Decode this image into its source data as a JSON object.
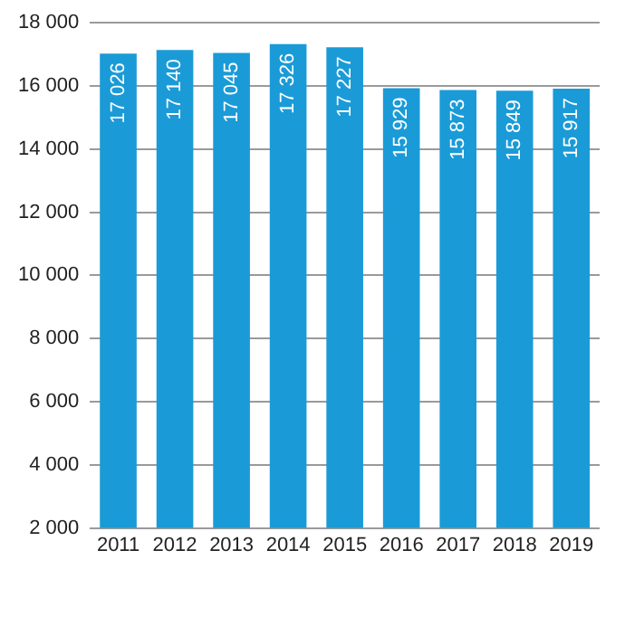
{
  "chart_data": {
    "type": "bar",
    "categories": [
      "2011",
      "2012",
      "2013",
      "2014",
      "2015",
      "2016",
      "2017",
      "2018",
      "2019"
    ],
    "values": [
      17026,
      17140,
      17045,
      17326,
      17227,
      15929,
      15873,
      15849,
      15917
    ],
    "value_labels": [
      "17 026",
      "17 140",
      "17 045",
      "17 326",
      "17 227",
      "15 929",
      "15 873",
      "15 849",
      "15 917"
    ],
    "color": "#1a9bd7",
    "ylim": [
      2000,
      18000
    ],
    "yticks": [
      {
        "value": 2000,
        "label": "2 000"
      },
      {
        "value": 4000,
        "label": "4 000"
      },
      {
        "value": 6000,
        "label": "6 000"
      },
      {
        "value": 8000,
        "label": "8 000"
      },
      {
        "value": 10000,
        "label": "10 000"
      },
      {
        "value": 12000,
        "label": "12 000"
      },
      {
        "value": 14000,
        "label": "14 000"
      },
      {
        "value": 16000,
        "label": "16 000"
      },
      {
        "value": 18000,
        "label": "18 000"
      }
    ],
    "grid": "y"
  }
}
